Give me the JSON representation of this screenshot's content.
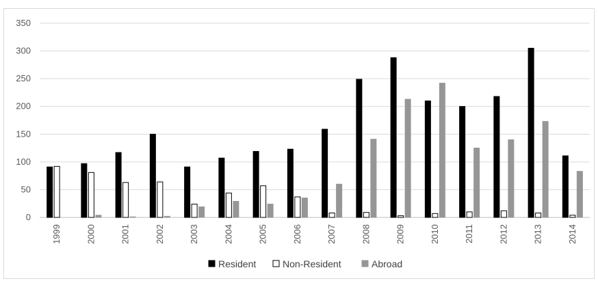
{
  "chart_data": {
    "type": "bar",
    "categories": [
      "1999",
      "2000",
      "2001",
      "2002",
      "2003",
      "2004",
      "2005",
      "2006",
      "2007",
      "2008",
      "2009",
      "2010",
      "2011",
      "2012",
      "2013",
      "2014"
    ],
    "series": [
      {
        "name": "Resident",
        "color": "#000000",
        "stroke": "#000000",
        "values": [
          91,
          97,
          117,
          150,
          91,
          107,
          119,
          123,
          159,
          249,
          288,
          210,
          200,
          218,
          305,
          111
        ]
      },
      {
        "name": "Non-Resident",
        "color": "#ffffff",
        "stroke": "#000000",
        "values": [
          92,
          81,
          63,
          64,
          24,
          44,
          57,
          37,
          8,
          9,
          3,
          7,
          10,
          12,
          8,
          4
        ]
      },
      {
        "name": "Abroad",
        "color": "#969696",
        "stroke": "#969696",
        "values": [
          0,
          4,
          1,
          2,
          19,
          29,
          24,
          35,
          60,
          141,
          213,
          242,
          125,
          140,
          173,
          83
        ]
      }
    ],
    "ylim": [
      0,
      350
    ],
    "yticks": [
      "0",
      "50",
      "100",
      "150",
      "200",
      "250",
      "300",
      "350"
    ],
    "grid": true,
    "legend": "bottom"
  }
}
